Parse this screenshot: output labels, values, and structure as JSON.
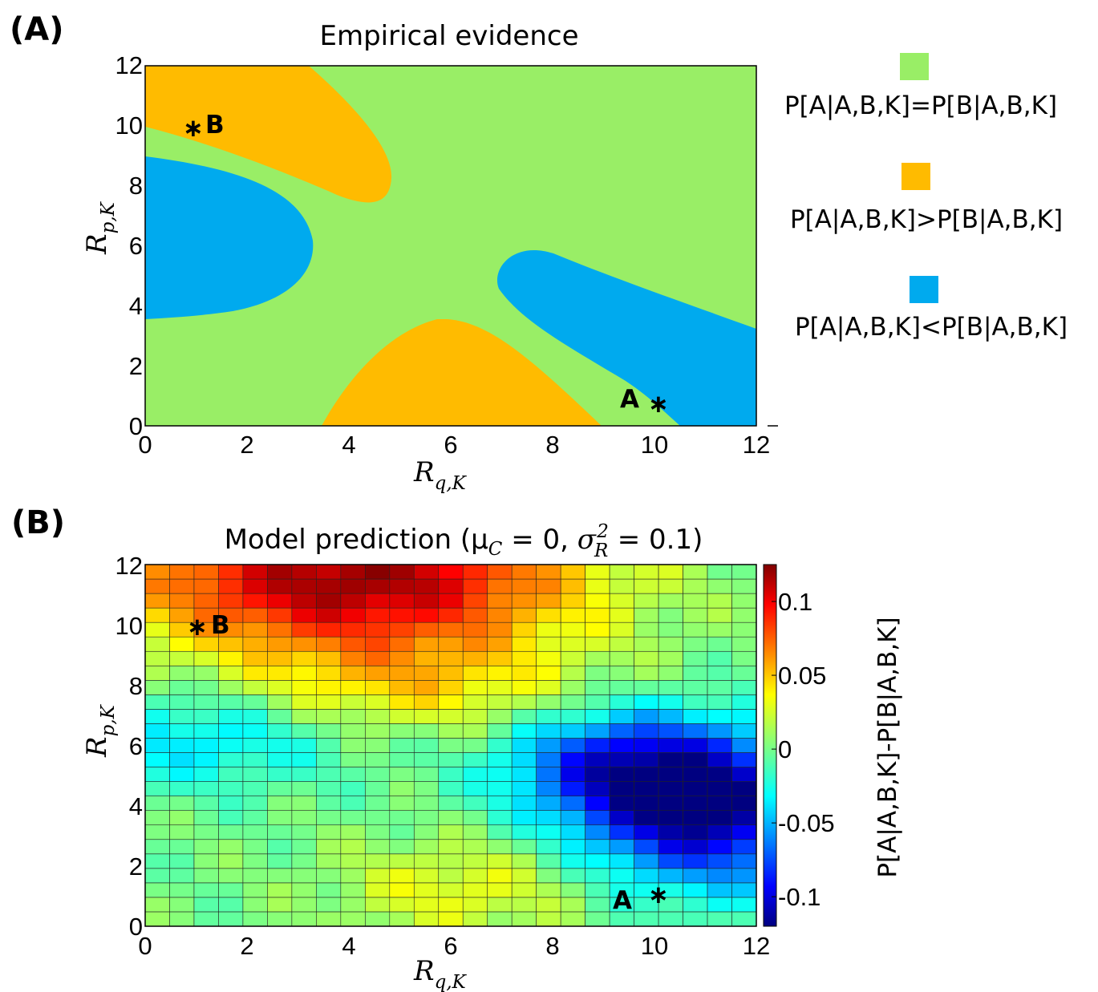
{
  "chart_data": [
    {
      "panel": "(A)",
      "type": "contour",
      "title": "Empirical evidence",
      "xlabel": "R_{q,K}",
      "ylabel": "R_{p,K}",
      "xlim": [
        0,
        12
      ],
      "ylim": [
        0,
        12
      ],
      "xticks": [
        "0",
        "2",
        "4",
        "6",
        "8",
        "10",
        "12"
      ],
      "yticks": [
        "0",
        "2",
        "4",
        "6",
        "8",
        "10",
        "12"
      ],
      "legend_placement": "right",
      "legend": [
        {
          "label": "P[A|A,B,K]=P[B|A,B,K]",
          "color": "#99ee66"
        },
        {
          "label": "P[A|A,B,K]>P[B|A,B,K]",
          "color": "#ffbb00"
        },
        {
          "label": "P[A|A,B,K]<P[B|A,B,K]",
          "color": "#00aaee"
        }
      ],
      "markers": [
        {
          "label": "B",
          "x": 0.9,
          "y": 10
        },
        {
          "label": "A",
          "x": 10,
          "y": 0.8
        }
      ]
    },
    {
      "panel": "(B)",
      "type": "heatmap",
      "title": "Model prediction (μ_C = 0, σ_R^2 = 0.1)",
      "xlabel": "R_{q,K}",
      "ylabel": "R_{p,K}",
      "colorbar_label": "P[A|A,B,K]-P[B|A,B,K]",
      "colorbar_ticks": [
        "0.1",
        "0.05",
        "0",
        "-0.05",
        "-0.1"
      ],
      "clim": [
        -0.12,
        0.125
      ],
      "colormap": "jet",
      "xlim": [
        0,
        12
      ],
      "ylim": [
        0,
        12
      ],
      "xticks": [
        "0",
        "2",
        "4",
        "6",
        "8",
        "10",
        "12"
      ],
      "yticks": [
        "0",
        "2",
        "4",
        "6",
        "8",
        "10",
        "12"
      ],
      "grid": true,
      "x_cells": 25,
      "y_cells": 25,
      "cell_size": 0.5,
      "markers": [
        {
          "label": "B",
          "x": 1,
          "y": 10
        },
        {
          "label": "A",
          "x": 10,
          "y": 1.2
        }
      ],
      "value_model": {
        "description": "Cell values P[A|A,B,K]-P[B|A,B,K] estimated from the color field",
        "components": [
          {
            "amp": 0.12,
            "cx": 4.2,
            "cy": 12.0,
            "sx": 3.2,
            "sy": 1.8
          },
          {
            "amp": 0.035,
            "cx": 5.5,
            "cy": 8.3,
            "sx": 2.5,
            "sy": 1.2
          },
          {
            "amp": -0.115,
            "cx": 11.5,
            "cy": 4.0,
            "sx": 1.8,
            "sy": 1.8
          },
          {
            "amp": -0.07,
            "cx": 9.6,
            "cy": 5.6,
            "sx": 1.6,
            "sy": 1.3
          },
          {
            "amp": -0.035,
            "cx": 1.0,
            "cy": 6.5,
            "sx": 2.2,
            "sy": 1.2
          },
          {
            "amp": 0.03,
            "cx": 6.5,
            "cy": 1.3,
            "sx": 1.8,
            "sy": 1.2
          }
        ]
      }
    }
  ],
  "panelA": {
    "label": "(A)",
    "title": "Empirical evidence",
    "marker_b": "B",
    "marker_a": "A",
    "star": "∗"
  },
  "panelB": {
    "label": "(B)",
    "title_prefix": "Model prediction (μ",
    "marker_b": "B",
    "marker_a": "A",
    "star": "∗"
  }
}
